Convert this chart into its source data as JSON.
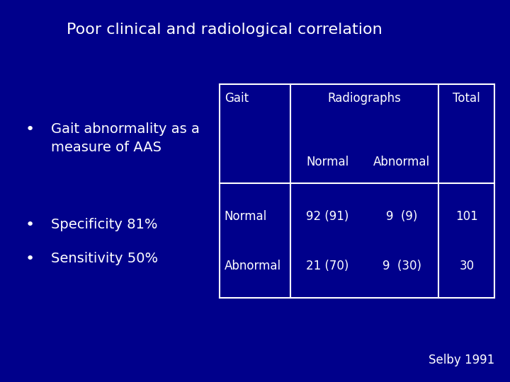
{
  "background_color": "#00008B",
  "title": "Poor clinical and radiological correlation",
  "title_color": "#FFFFFF",
  "title_fontsize": 16,
  "bullet_color": "#FFFFFF",
  "bullet_fontsize": 14,
  "bullets": [
    "Gait abnormality as a\nmeasure of AAS",
    "Specificity 81%",
    "Sensitivity 50%"
  ],
  "table": {
    "border_color": "#FFFFFF",
    "text_color": "#FFFFFF",
    "header_gait": "Gait",
    "header_radiographs": "Radiographs",
    "header_total": "Total",
    "header_normal": "Normal",
    "header_abnormal": "Abnormal",
    "r1_gait": "Normal",
    "r1_normal": "92 (91)",
    "r1_abnormal": "9  (9)",
    "r1_total": "101",
    "r2_gait": "Abnormal",
    "r2_normal": "21 (70)",
    "r2_abnormal": "9  (30)",
    "r2_total": "30"
  },
  "footnote": "Selby 1991",
  "footnote_color": "#FFFFFF",
  "footnote_fontsize": 12
}
